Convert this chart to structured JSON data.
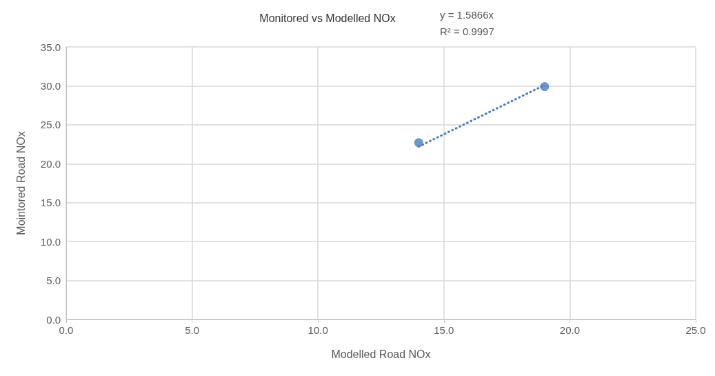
{
  "chart_data": {
    "type": "scatter",
    "title": "Monitored vs Modelled NOx",
    "xlabel": "Modelled Road NOx",
    "ylabel": "Mointored Road NOx",
    "annotations": [
      "y = 1.5866x",
      "R² = 0.9997"
    ],
    "x": [
      14.0,
      19.0
    ],
    "series": [
      {
        "color": "#4a7ebb",
        "marker": "circle",
        "values": [
          22.7,
          29.9
        ]
      },
      {
        "type": "line",
        "color": "#4a7ebb",
        "marker": "none",
        "line_style": "dotted",
        "x": [
          14.0,
          19.0
        ],
        "values": [
          22.2,
          30.1
        ]
      }
    ],
    "xlim": [
      0,
      25
    ],
    "xticks": [
      {
        "value": 0,
        "label": "0.0"
      },
      {
        "value": 5,
        "label": "5.0"
      },
      {
        "value": 10,
        "label": "10.0"
      },
      {
        "value": 15,
        "label": "15.0"
      },
      {
        "value": 20,
        "label": "20.0"
      },
      {
        "value": 25,
        "label": "25.0"
      }
    ],
    "ylim": [
      0,
      35
    ],
    "yticks": [
      {
        "value": 0,
        "label": "0.0"
      },
      {
        "value": 5,
        "label": "5.0"
      },
      {
        "value": 10,
        "label": "10.0"
      },
      {
        "value": 15,
        "label": "15.0"
      },
      {
        "value": 20,
        "label": "20.0"
      },
      {
        "value": 25,
        "label": "25.0"
      },
      {
        "value": 30,
        "label": "30.0"
      },
      {
        "value": 35,
        "label": "35.0"
      }
    ],
    "grid": true
  }
}
